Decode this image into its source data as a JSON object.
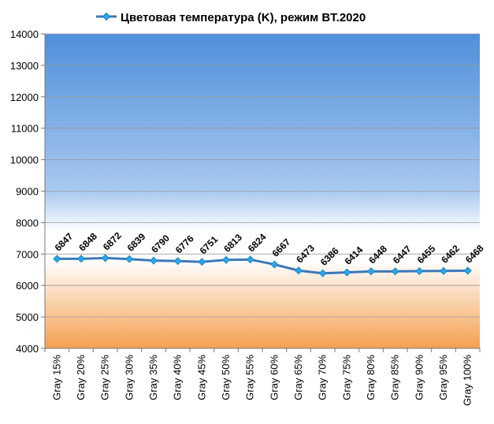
{
  "chart_data": {
    "type": "line",
    "title": "",
    "xlabel": "",
    "ylabel": "",
    "ylim": [
      4000,
      14000
    ],
    "yticks": [
      4000,
      5000,
      6000,
      7000,
      8000,
      9000,
      10000,
      11000,
      12000,
      13000,
      14000
    ],
    "grid": "horizontal",
    "legend": "top",
    "categories": [
      "Gray 15%",
      "Gray 20%",
      "Gray 25%",
      "Gray 30%",
      "Gray 35%",
      "Gray 40%",
      "Gray 45%",
      "Gray 50%",
      "Gray 55%",
      "Gray 60%",
      "Gray 65%",
      "Gray 70%",
      "Gray 75%",
      "Gray 80%",
      "Gray 85%",
      "Gray 90%",
      "Gray 95%",
      "Gray 100%"
    ],
    "series": [
      {
        "name": "Цветовая температура (K), режим BT.2020",
        "color": "#3c78b8",
        "marker_color": "#2aa6e8",
        "values": [
          6847,
          6848,
          6872,
          6839,
          6790,
          6776,
          6751,
          6813,
          6824,
          6667,
          6473,
          6386,
          6414,
          6448,
          6447,
          6455,
          6462,
          6468
        ]
      }
    ],
    "background_colors": {
      "cool": "#4f8fdb",
      "neutral": "#ffffff",
      "warm": "#f5a050"
    }
  }
}
